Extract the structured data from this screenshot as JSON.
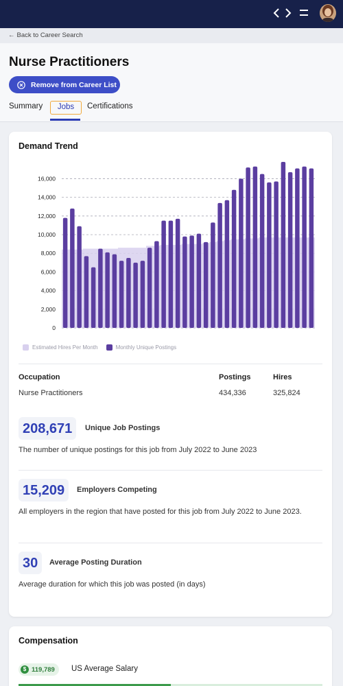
{
  "topbar": {
    "back_icon": "chevron-left-icon",
    "forward_icon": "chevron-right-icon",
    "menu_icon": "menu-icon",
    "avatar": "user-avatar"
  },
  "breadcrumb": {
    "label": "Back to Career Search",
    "icon": "arrow-left-icon"
  },
  "page": {
    "title": "Nurse Practitioners",
    "remove_button": "Remove from Career List",
    "tabs": [
      {
        "label": "Summary"
      },
      {
        "label": "Jobs"
      },
      {
        "label": "Certifications"
      }
    ],
    "active_tab": "Jobs"
  },
  "demand": {
    "title": "Demand Trend",
    "legend": {
      "hires": "Estimated Hires Per Month",
      "postings": "Monthly Unique Postings"
    }
  },
  "chart_data": {
    "type": "bar",
    "yticks": [
      "0",
      "2,000",
      "4,000",
      "6,000",
      "8,000",
      "10,000",
      "12,000",
      "14,000",
      "16,000"
    ],
    "ylim": [
      0,
      17800
    ],
    "series": [
      {
        "name": "Monthly Unique Postings",
        "color": "#5b3ea0",
        "values": [
          11800,
          12800,
          10900,
          7700,
          6500,
          8500,
          8100,
          7900,
          7200,
          7500,
          7000,
          7200,
          8600,
          9300,
          11500,
          11500,
          11700,
          9800,
          9900,
          10100,
          9200,
          11300,
          13400,
          13700,
          14800,
          16000,
          17200,
          17300,
          16500,
          15600,
          15700,
          17800,
          16700,
          17100,
          17300,
          17100
        ]
      },
      {
        "name": "Estimated Hires Per Month",
        "color": "#d8d0ee",
        "values": [
          8400,
          8400,
          8400,
          8500,
          8500,
          8500,
          8500,
          8500,
          8600,
          8600,
          8600,
          8600,
          8800,
          8800,
          8900,
          8900,
          8900,
          9000,
          9000,
          9000,
          9100,
          9200,
          9300,
          9400,
          9500,
          9500,
          9600,
          9600,
          9700,
          9700,
          9700,
          9700,
          9700,
          9700,
          9700,
          9700
        ]
      }
    ],
    "grid": true,
    "legend_position": "bottom"
  },
  "table": {
    "headers": {
      "occupation": "Occupation",
      "postings": "Postings",
      "hires": "Hires"
    },
    "row": {
      "occupation": "Nurse Practitioners",
      "postings": "434,336",
      "hires": "325,824"
    }
  },
  "stats": [
    {
      "value": "208,671",
      "label": "Unique Job Postings",
      "desc": "The number of unique postings for this job from July 2022 to June 2023"
    },
    {
      "value": "15,209",
      "label": "Employers Competing",
      "desc": "All employers in the region that have posted for this job from July 2022 to June 2023."
    },
    {
      "value": "30",
      "label": "Average Posting Duration",
      "desc": "Average duration for which this job was posted (in days)"
    }
  ],
  "compensation": {
    "title": "Compensation",
    "salary": "119,789",
    "salary_label": "US Average Salary",
    "currency_icon": "dollar-icon",
    "salary_bar_fraction": 0.5
  }
}
